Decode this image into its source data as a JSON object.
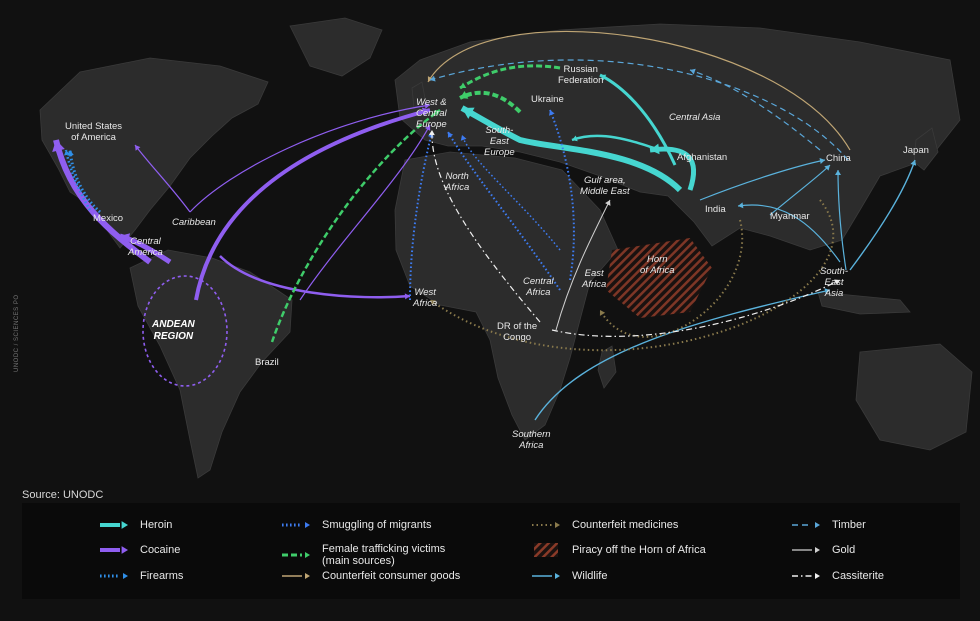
{
  "source": "Source: UNODC",
  "credit": "UNODC / SCIENCES PO",
  "colors": {
    "heroin": "#46d6d0",
    "cocaine": "#8f5ef0",
    "firearms": "#2f8fe8",
    "migrants": "#3d7bf0",
    "female": "#3fcc6a",
    "consumer": "#bfa574",
    "medicines": "#8a7a4c",
    "piracy": "#8a3a28",
    "wildlife": "#5ab2dc",
    "timber": "#5aa6d8",
    "gold": "#d0d0d0",
    "cassiterite": "#f0f0f0"
  },
  "labels": {
    "usa": "United States\nof America",
    "mexico": "Mexico",
    "central_america": "Central\nAmerica",
    "caribbean": "Caribbean",
    "andean": "ANDEAN\nREGION",
    "brazil": "Brazil",
    "west_central_europe": "West &\nCentral\nEurope",
    "russia": "Russian\nFederation",
    "ukraine": "Ukraine",
    "see": "South-\nEast\nEurope",
    "north_africa": "North\nAfrica",
    "central_asia": "Central Asia",
    "afghanistan": "Afghanistan",
    "gulf": "Gulf area,\nMiddle East",
    "china": "China",
    "japan": "Japan",
    "india": "India",
    "myanmar": "Myanmar",
    "sea": "South-\nEast\nAsia",
    "west_africa": "West\nAfrica",
    "central_africa": "Central\nAfrica",
    "east_africa": "East\nAfrica",
    "horn": "Horn\nof Africa",
    "drc": "DR of the\nCongo",
    "southern_africa": "Southern\nAfrica"
  },
  "legend": [
    {
      "key": "heroin",
      "label": "Heroin"
    },
    {
      "key": "cocaine",
      "label": "Cocaine"
    },
    {
      "key": "firearms",
      "label": "Firearms"
    },
    {
      "key": "migrants",
      "label": "Smuggling of migrants"
    },
    {
      "key": "female",
      "label": "Female trafficking victims\n(main sources)"
    },
    {
      "key": "consumer",
      "label": "Counterfeit consumer goods"
    },
    {
      "key": "medicines",
      "label": "Counterfeit medicines"
    },
    {
      "key": "piracy",
      "label": "Piracy off the Horn of Africa"
    },
    {
      "key": "wildlife",
      "label": "Wildlife"
    },
    {
      "key": "timber",
      "label": "Timber"
    },
    {
      "key": "gold",
      "label": "Gold"
    },
    {
      "key": "cassiterite",
      "label": "Cassiterite"
    }
  ]
}
